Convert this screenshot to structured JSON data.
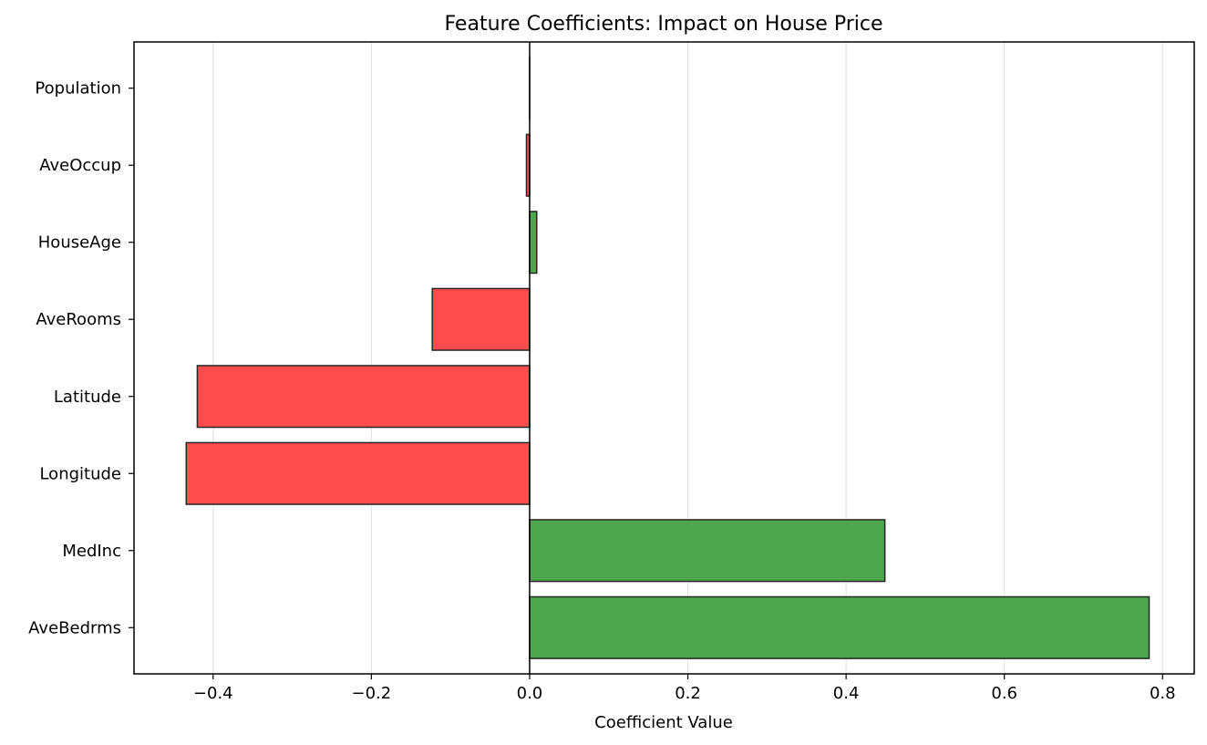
{
  "chart_data": {
    "type": "bar",
    "orientation": "horizontal",
    "title": "Feature Coefficients: Impact on House Price",
    "xlabel": "Coefficient Value",
    "ylabel": "",
    "xlim": [
      -0.5,
      0.84
    ],
    "xticks": [
      -0.4,
      -0.2,
      0.0,
      0.2,
      0.4,
      0.6,
      0.8
    ],
    "xtick_labels": [
      "−0.4",
      "−0.2",
      "0.0",
      "0.2",
      "0.4",
      "0.6",
      "0.8"
    ],
    "grid": {
      "x": true,
      "y": false
    },
    "categories": [
      "AveBedrms",
      "MedInc",
      "Longitude",
      "Latitude",
      "AveRooms",
      "HouseAge",
      "AveOccup",
      "Population"
    ],
    "values": [
      0.783,
      0.449,
      -0.434,
      -0.42,
      -0.123,
      0.009,
      -0.004,
      0.0
    ],
    "colors": {
      "positive": "#4ca64c",
      "negative": "#ff4d4d",
      "edge": "#262626",
      "zero_line": "#000000",
      "grid": "#e6e6e6"
    }
  }
}
